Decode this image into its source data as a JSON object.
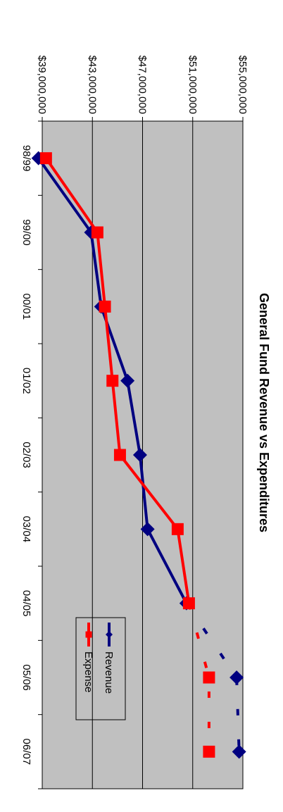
{
  "chart_data": {
    "type": "line",
    "title": "General Fund Revenue vs Expenditures",
    "categories": [
      "98/99",
      "99/00",
      "00/01",
      "01/02",
      "02/03",
      "03/04",
      "04/05",
      "05/06",
      "06/07"
    ],
    "y_ticks": [
      "$39,000,000",
      "$43,000,000",
      "$47,000,000",
      "$51,000,000",
      "$55,000,000"
    ],
    "ylim": [
      39000000,
      55000000
    ],
    "grid": true,
    "legend_position": "right",
    "series": [
      {
        "name": "Revenue",
        "color": "#000080",
        "marker": "diamond",
        "values": [
          38700000,
          42900000,
          43700000,
          45800000,
          46800000,
          47400000,
          50500000,
          54500000,
          54700000
        ],
        "projected_from_index": 7
      },
      {
        "name": "Expense",
        "color": "#ff0000",
        "marker": "square",
        "values": [
          39300000,
          43400000,
          44000000,
          44600000,
          45200000,
          49800000,
          50700000,
          52300000,
          52300000
        ],
        "projected_from_index": 7
      }
    ]
  }
}
